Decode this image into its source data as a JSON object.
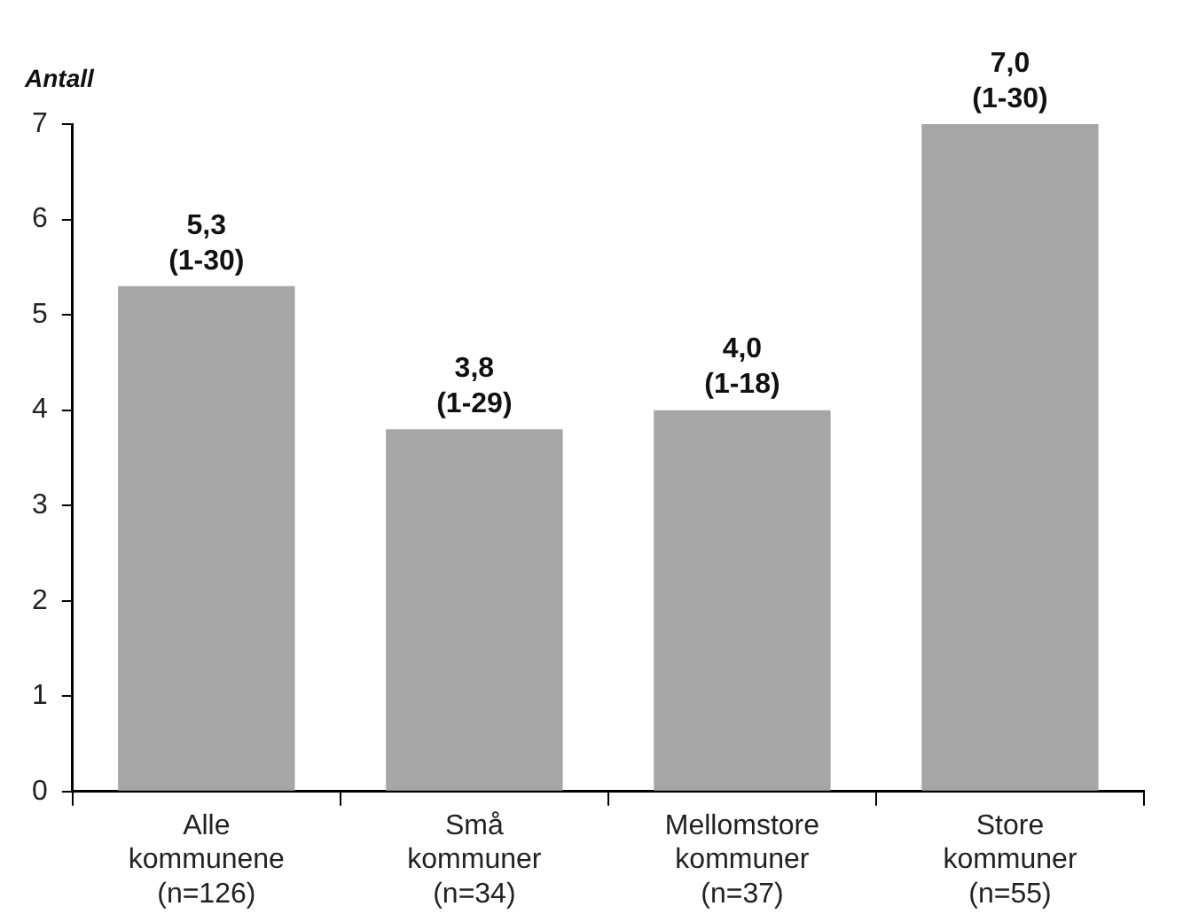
{
  "chart_data": {
    "type": "bar",
    "ylabel": "Antall",
    "categories": [
      "Alle\nkommunene\n(n=126)",
      "Små\nkommuner\n(n=34)",
      "Mellomstore\nkommuner\n(n=37)",
      "Store\nkommuner\n(n=55)"
    ],
    "values": [
      5.3,
      3.8,
      4.0,
      7.0
    ],
    "value_labels": [
      "5,3\n(1-30)",
      "3,8\n(1-29)",
      "4,0\n(1-18)",
      "7,0\n(1-30)"
    ],
    "color": "#a6a6a6",
    "ylim": [
      0,
      7
    ],
    "yticks": [
      0,
      1,
      2,
      3,
      4,
      5,
      6,
      7
    ],
    "grid": false,
    "legend": false
  }
}
